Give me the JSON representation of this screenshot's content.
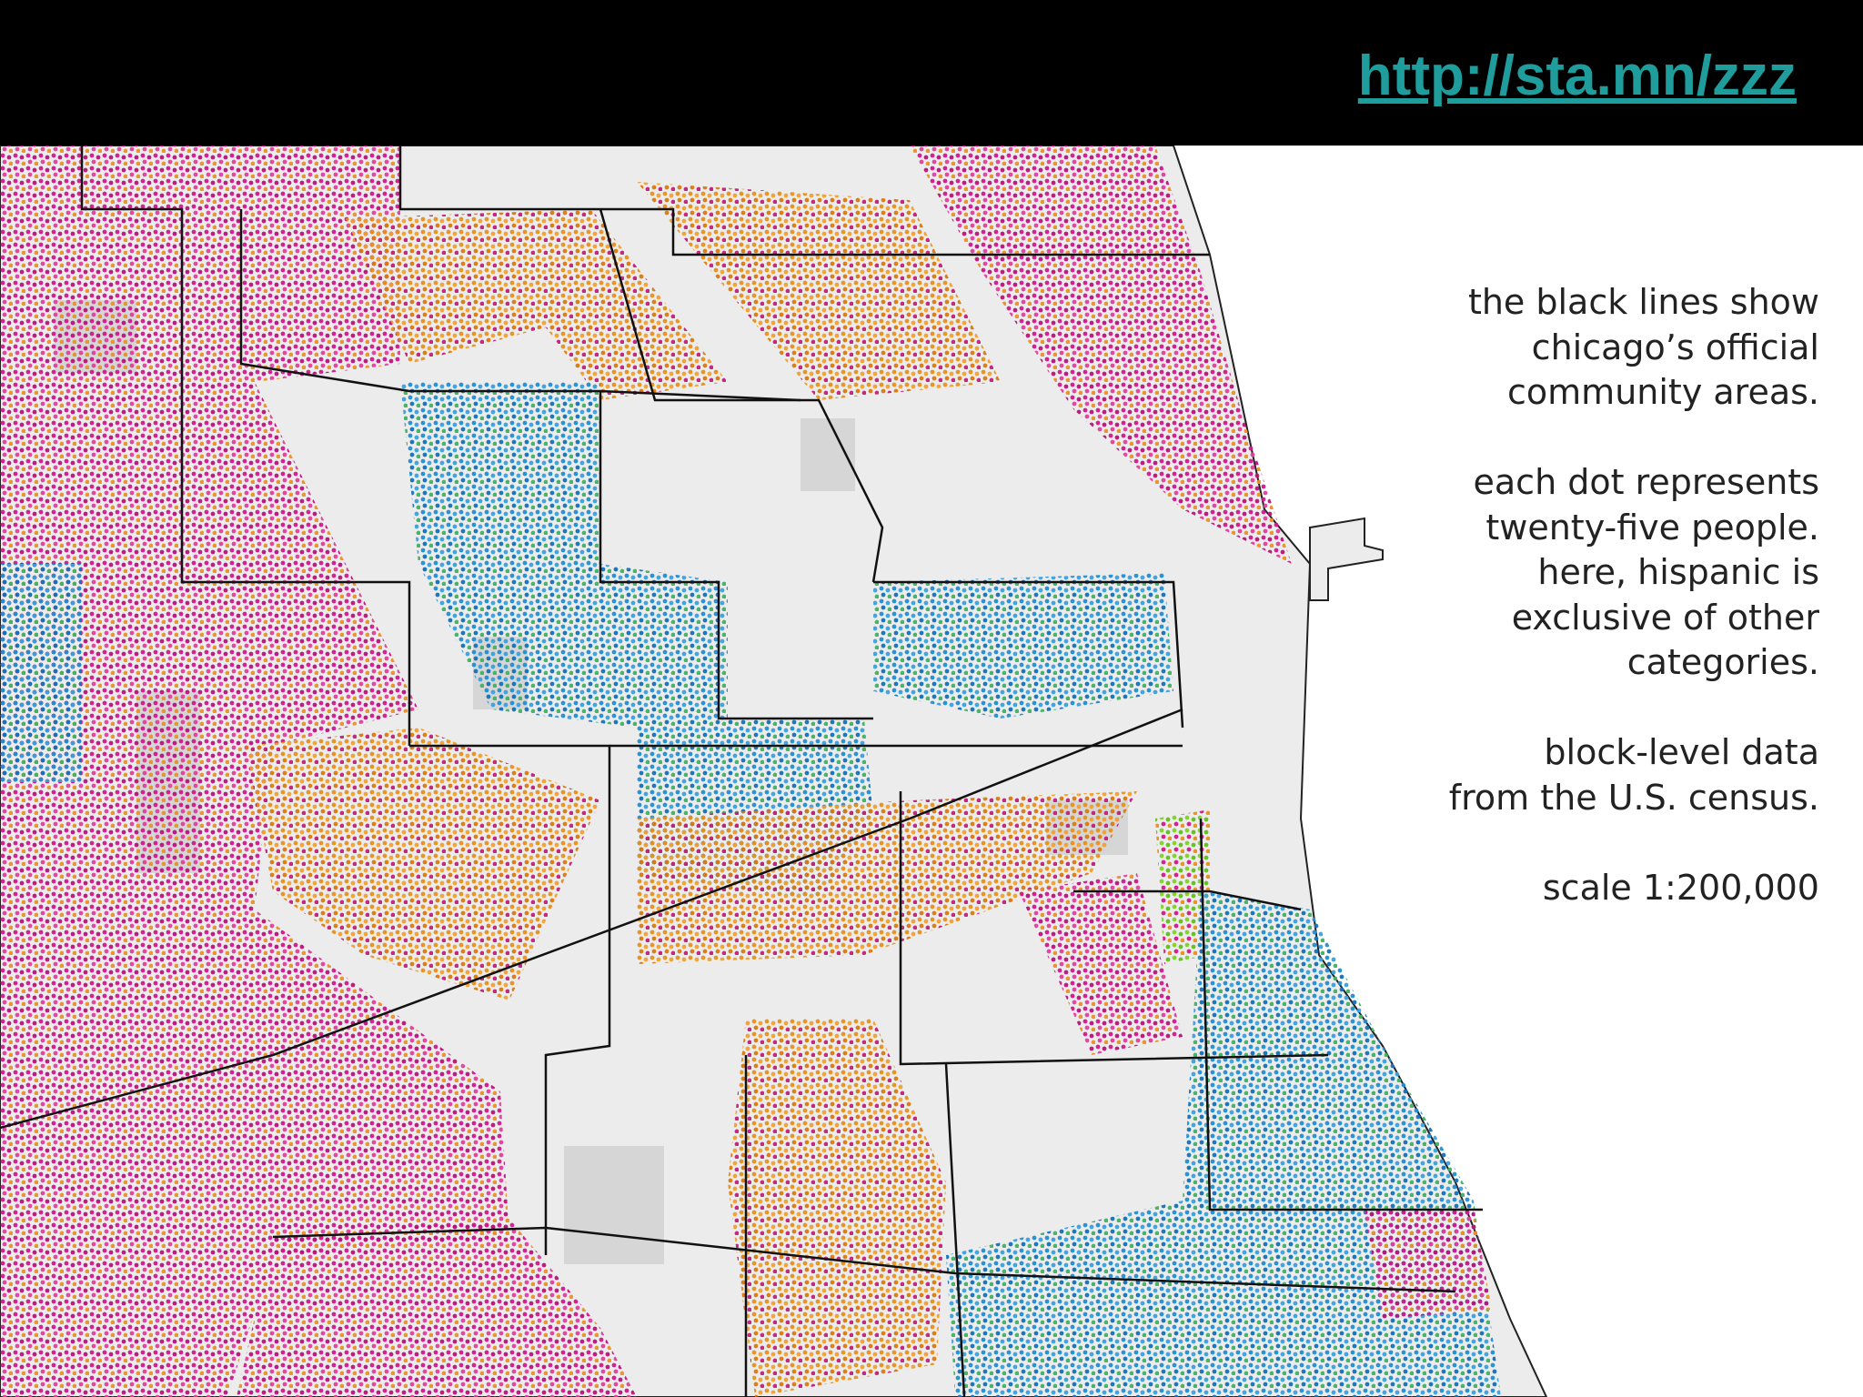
{
  "header": {
    "link": "http://sta.mn/zzz"
  },
  "notes": [
    [
      "the black lines show",
      "chicago’s official",
      "community areas."
    ],
    [
      "each dot represents",
      "twenty-five people.",
      "here, hispanic is",
      "exclusive of other",
      "categories."
    ],
    [
      "block-level data",
      "from the U.S. census."
    ],
    [
      "scale 1:200,000"
    ]
  ]
}
